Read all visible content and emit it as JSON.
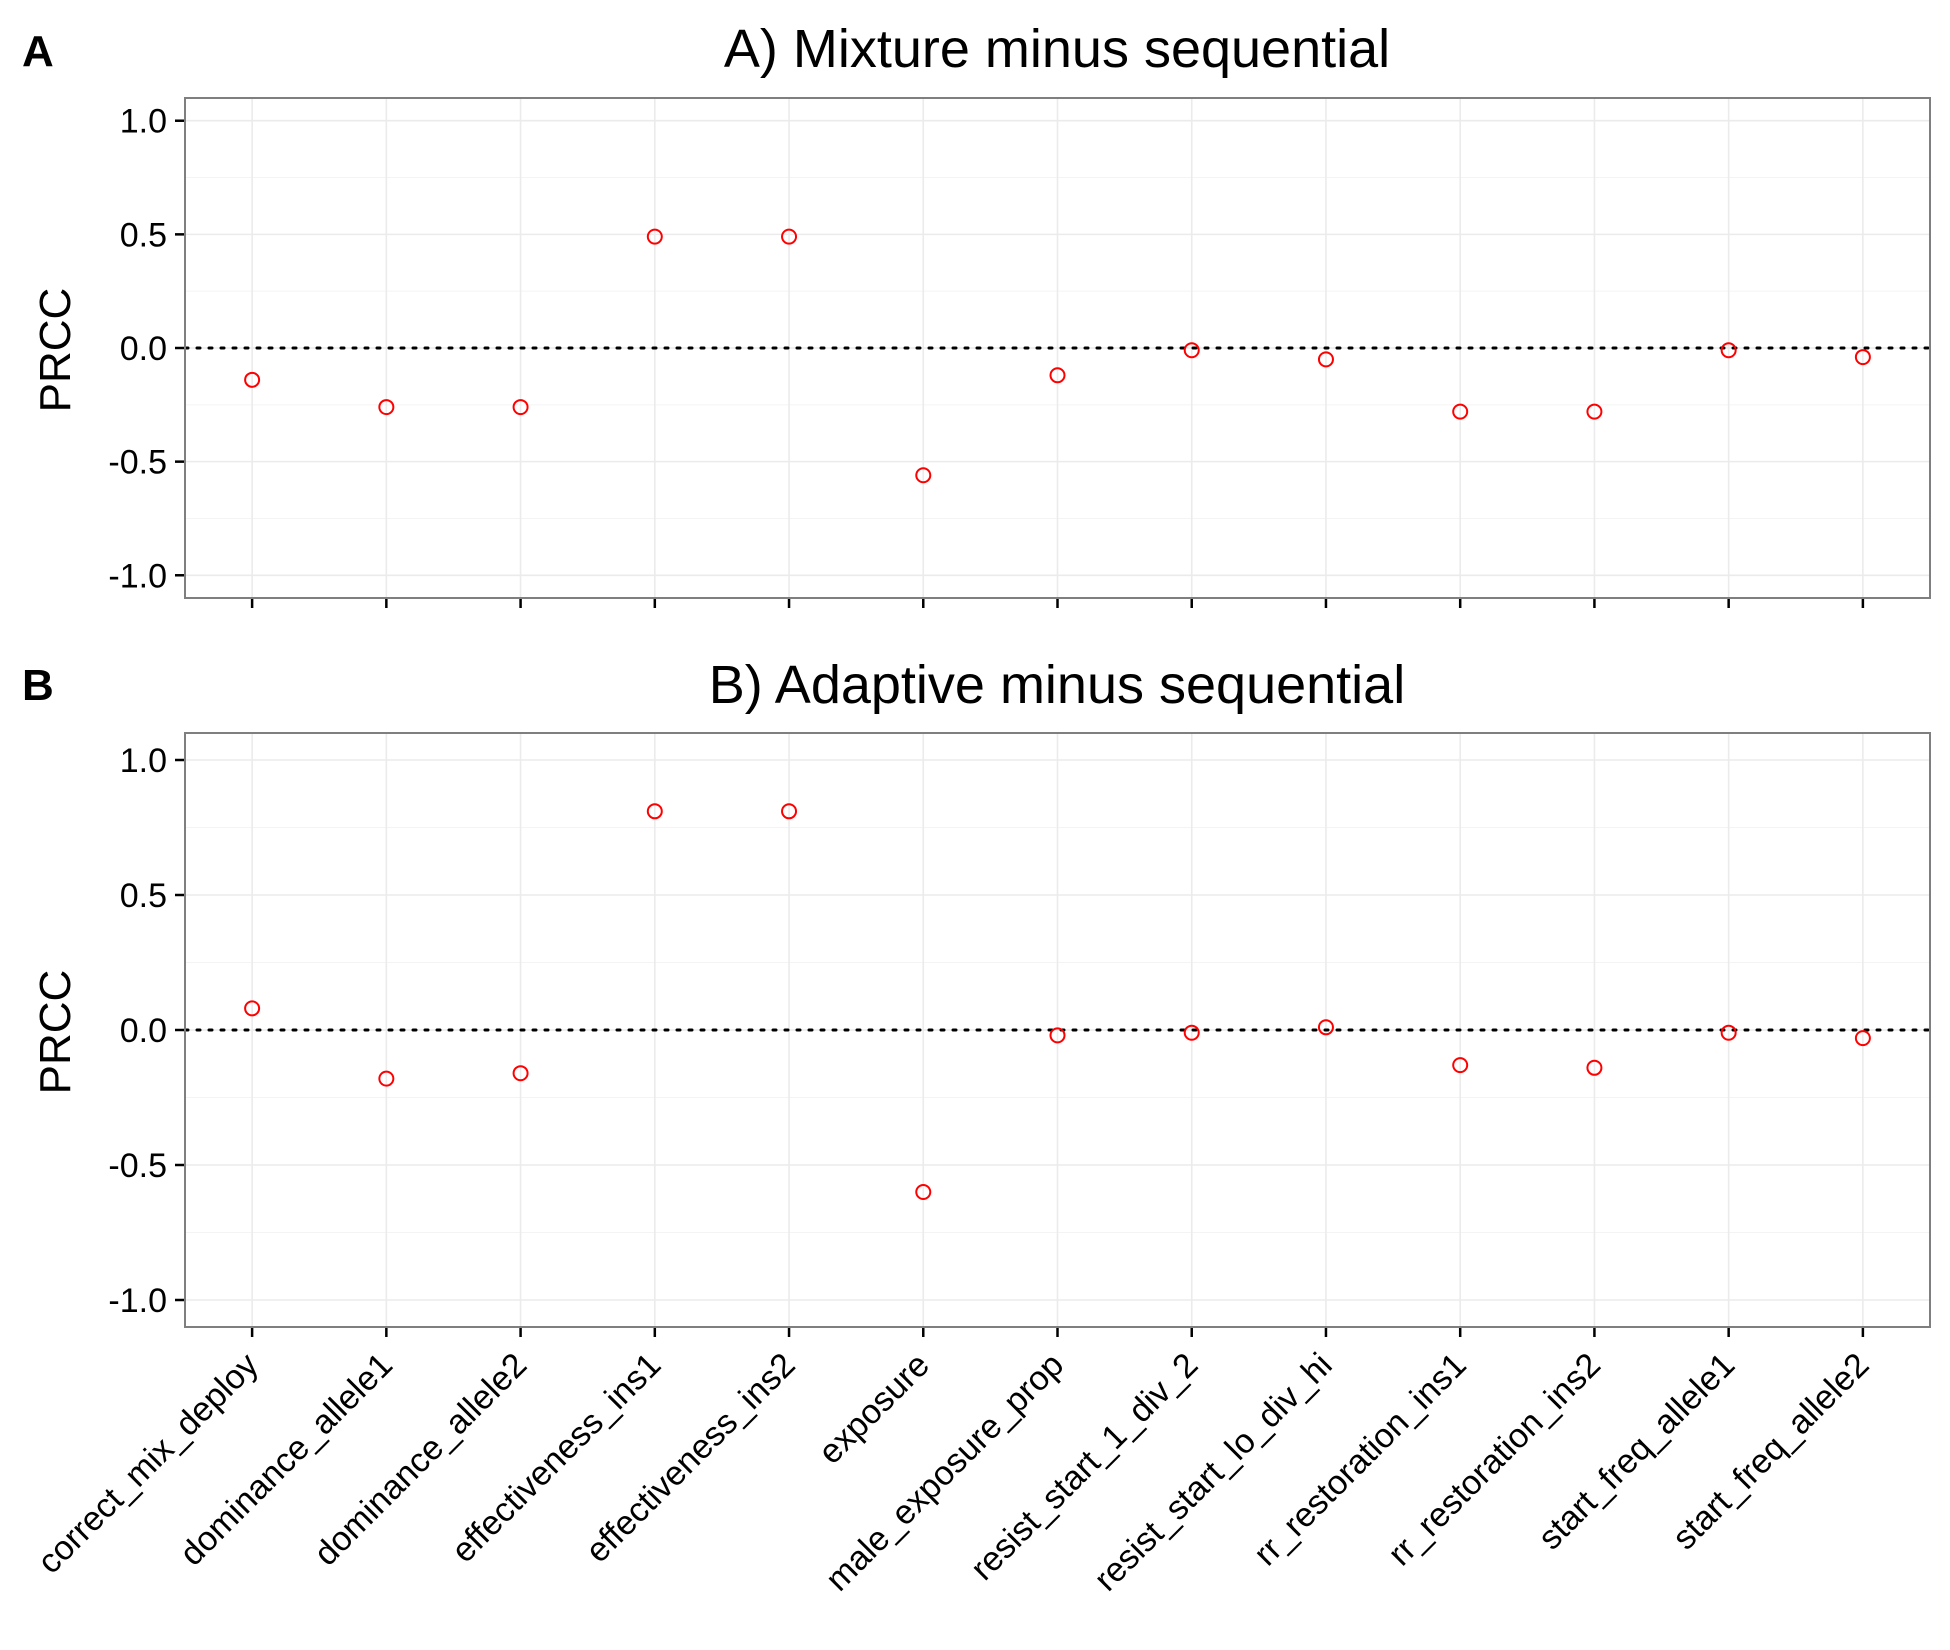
{
  "chart_data": [
    {
      "type": "scatter",
      "panel_label": "A",
      "title": "A) Mixture minus sequential",
      "ylabel": "PRCC",
      "xlabel": "",
      "ylim": [
        -1.1,
        1.1
      ],
      "yticks": [
        1.0,
        0.5,
        0.0,
        -0.5,
        -1.0
      ],
      "ytick_labels": [
        "1.0",
        "0.5",
        "0.0",
        "-0.5",
        "-1.0"
      ],
      "reference_line": 0,
      "point_color": "#ff0000",
      "categories": [
        "correct_mix_deploy",
        "dominance_allele1",
        "dominance_allele2",
        "effectiveness_ins1",
        "effectiveness_ins2",
        "exposure",
        "male_exposure_prop",
        "resist_start_1_div_2",
        "resist_start_lo_div_hi",
        "rr_restoration_ins1",
        "rr_restoration_ins2",
        "start_freq_allele1",
        "start_freq_allele2"
      ],
      "values": [
        -0.14,
        -0.26,
        -0.26,
        0.49,
        0.49,
        -0.56,
        -0.12,
        -0.01,
        -0.05,
        -0.28,
        -0.28,
        -0.01,
        -0.04
      ]
    },
    {
      "type": "scatter",
      "panel_label": "B",
      "title": "B) Adaptive minus sequential",
      "ylabel": "PRCC",
      "xlabel": "",
      "ylim": [
        -1.1,
        1.1
      ],
      "yticks": [
        1.0,
        0.5,
        0.0,
        -0.5,
        -1.0
      ],
      "ytick_labels": [
        "1.0",
        "0.5",
        "0.0",
        "-0.5",
        "-1.0"
      ],
      "reference_line": 0,
      "point_color": "#ff0000",
      "categories": [
        "correct_mix_deploy",
        "dominance_allele1",
        "dominance_allele2",
        "effectiveness_ins1",
        "effectiveness_ins2",
        "exposure",
        "male_exposure_prop",
        "resist_start_1_div_2",
        "resist_start_lo_div_hi",
        "rr_restoration_ins1",
        "rr_restoration_ins2",
        "start_freq_allele1",
        "start_freq_allele2"
      ],
      "values": [
        0.08,
        -0.18,
        -0.16,
        0.81,
        0.81,
        -0.6,
        -0.02,
        -0.01,
        0.01,
        -0.13,
        -0.14,
        -0.01,
        -0.03
      ]
    }
  ]
}
